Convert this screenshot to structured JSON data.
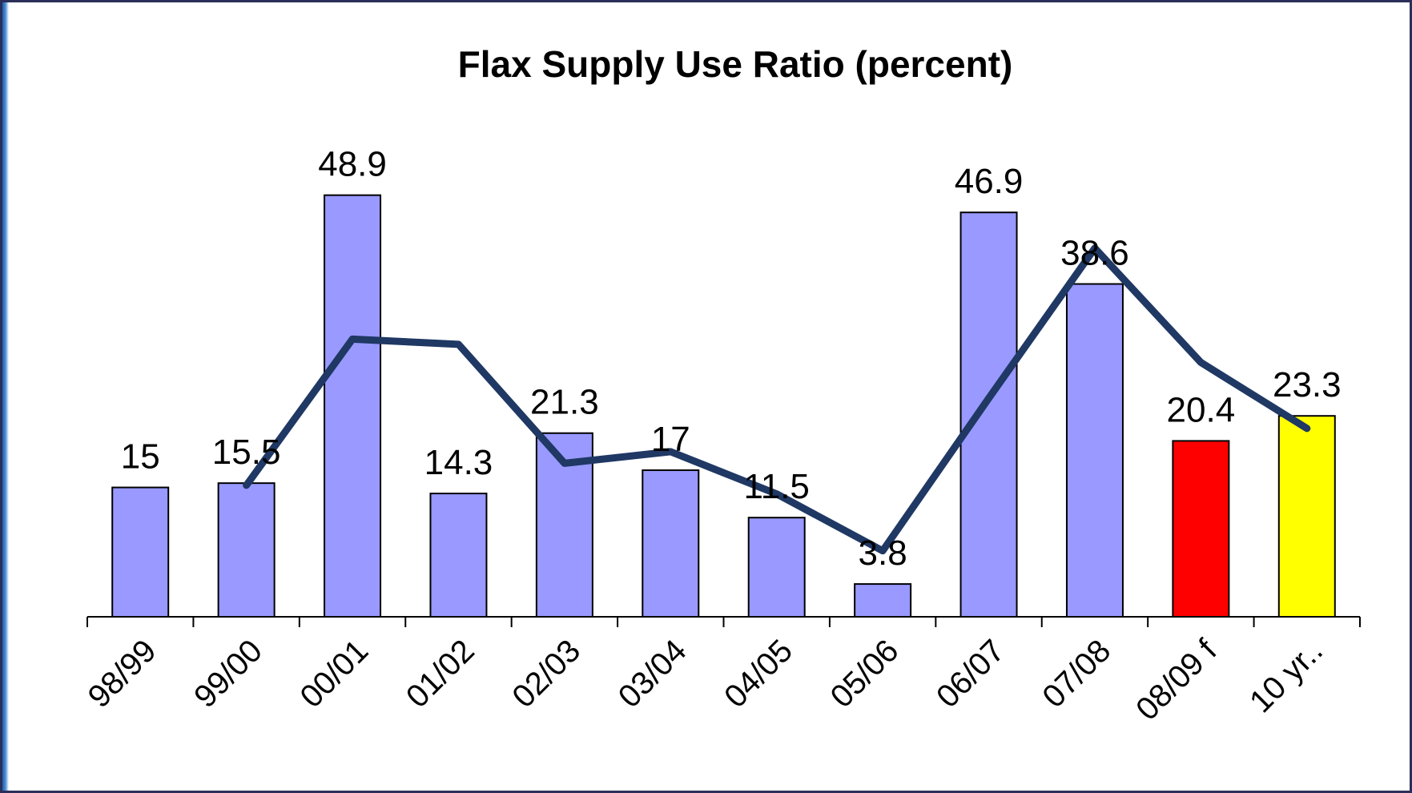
{
  "chart_data": {
    "type": "bar",
    "title": "Flax Supply Use Ratio  (percent)",
    "xlabel": "",
    "ylabel": "",
    "ylim": [
      0,
      55
    ],
    "grid": false,
    "legend": "none",
    "categories": [
      "98/99",
      "99/00",
      "00/01",
      "01/02",
      "02/03",
      "03/04",
      "04/05",
      "05/06",
      "06/07",
      "07/08",
      "08/09 f",
      "10 yr.."
    ],
    "series": [
      {
        "type": "bar",
        "values": [
          15,
          15.5,
          48.9,
          14.3,
          21.3,
          17,
          11.5,
          3.8,
          46.9,
          38.6,
          20.4,
          23.3
        ],
        "data_labels": [
          "15",
          "15.5",
          "48.9",
          "14.3",
          "21.3",
          "17",
          "11.5",
          "3.8",
          "46.9",
          "38.6",
          "20.4",
          "23.3"
        ],
        "colors": [
          "#9999ff",
          "#9999ff",
          "#9999ff",
          "#9999ff",
          "#9999ff",
          "#9999ff",
          "#9999ff",
          "#9999ff",
          "#9999ff",
          "#9999ff",
          "#ff0000",
          "#ffff00"
        ]
      },
      {
        "type": "line",
        "values": [
          null,
          15.25,
          32.2,
          31.6,
          17.8,
          19.15,
          14.25,
          7.65,
          25.35,
          42.75,
          29.5,
          21.85
        ],
        "color": "#1f3864"
      }
    ]
  }
}
